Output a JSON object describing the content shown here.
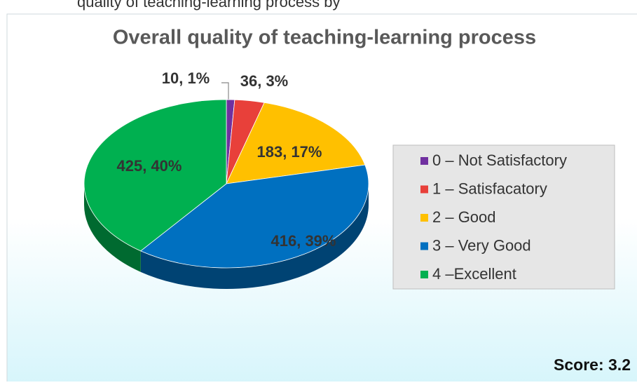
{
  "caption": "quality of teaching-learning process by",
  "chart_data": {
    "type": "pie",
    "title": "Overall quality of teaching-learning process",
    "categories": [
      "0 – Not Satisfactory",
      "1 – Satisfacatory",
      "2 – Good",
      "3 – Very Good",
      "4 –Excellent"
    ],
    "values": [
      10,
      36,
      183,
      416,
      425
    ],
    "value_labels": [
      "10, 1%",
      "36, 3%",
      "183, 17%",
      "416, 39%",
      "425, 40%"
    ],
    "colors": [
      "#7030a0",
      "#e8403a",
      "#ffc000",
      "#0070c0",
      "#00b050"
    ],
    "annotation": "Score: 3.2"
  }
}
